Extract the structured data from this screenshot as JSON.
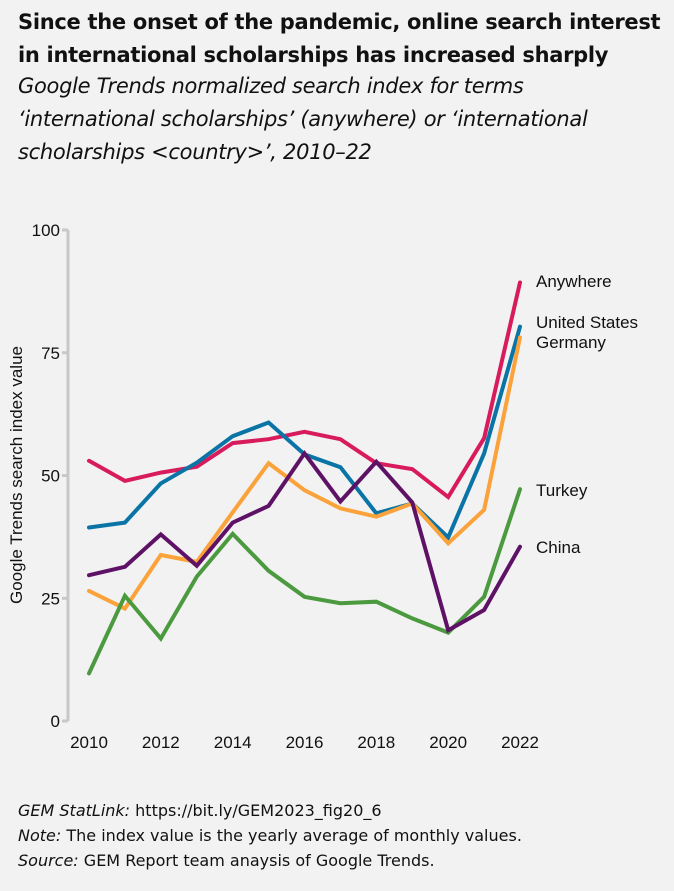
{
  "title": "Since the onset of the pandemic, online search interest in international scholarships has increased sharply",
  "subtitle": "Google Trends normalized search index for terms ‘international scholarships’ (anywhere) or ‘international scholarships <country>’, 2010–22",
  "chart_data": {
    "type": "line",
    "title": "Since the onset of the pandemic, online search interest in international scholarships has increased sharply",
    "subtitle": "Google Trends normalized search index for terms ‘international scholarships’ (anywhere) or ‘international scholarships <country>’, 2010–22",
    "xlabel": "",
    "ylabel": "Google Trends search index value",
    "x": [
      2010,
      2011,
      2012,
      2013,
      2014,
      2015,
      2016,
      2017,
      2018,
      2019,
      2020,
      2021,
      2022
    ],
    "xticks": [
      "2010",
      "2012",
      "2014",
      "2016",
      "2018",
      "2020",
      "2022"
    ],
    "yticks": [
      "0",
      "25",
      "50",
      "75",
      "100"
    ],
    "ylim": [
      0,
      100
    ],
    "grid": false,
    "legend": "direct labels at right end of lines",
    "series": [
      {
        "name": "Anywhere",
        "color": "#d81b5c",
        "values": [
          53.0,
          48.9,
          50.6,
          51.8,
          56.6,
          57.4,
          58.9,
          57.4,
          52.5,
          51.3,
          45.6,
          57.6,
          89.3
        ]
      },
      {
        "name": "United States",
        "color": "#0a74a6",
        "values": [
          39.4,
          40.4,
          48.4,
          52.6,
          58.0,
          60.8,
          54.3,
          51.7,
          42.3,
          44.3,
          37.4,
          54.5,
          80.3
        ]
      },
      {
        "name": "Germany",
        "color": "#fba23a",
        "values": [
          26.5,
          22.9,
          33.8,
          32.4,
          42.5,
          52.5,
          47.0,
          43.3,
          41.6,
          44.3,
          36.2,
          43.0,
          78.1
        ]
      },
      {
        "name": "Turkey",
        "color": "#4c9a3f",
        "values": [
          9.7,
          25.5,
          16.8,
          29.4,
          38.1,
          30.6,
          25.3,
          24.0,
          24.3,
          20.9,
          18.0,
          25.3,
          47.2
        ]
      },
      {
        "name": "China",
        "color": "#5e1266",
        "values": [
          29.7,
          31.4,
          38.0,
          31.6,
          40.4,
          43.8,
          54.5,
          44.7,
          52.8,
          44.5,
          18.5,
          22.6,
          35.5
        ]
      }
    ]
  },
  "footer": {
    "statlink_label": "GEM StatLink:",
    "statlink_url": " https://bit.ly/GEM2023_fig20_6",
    "note_label": "Note:",
    "note_text": " The index value is the yearly average of monthly values.",
    "source_label": "Source:",
    "source_text": " GEM Report team anaysis of Google Trends."
  }
}
